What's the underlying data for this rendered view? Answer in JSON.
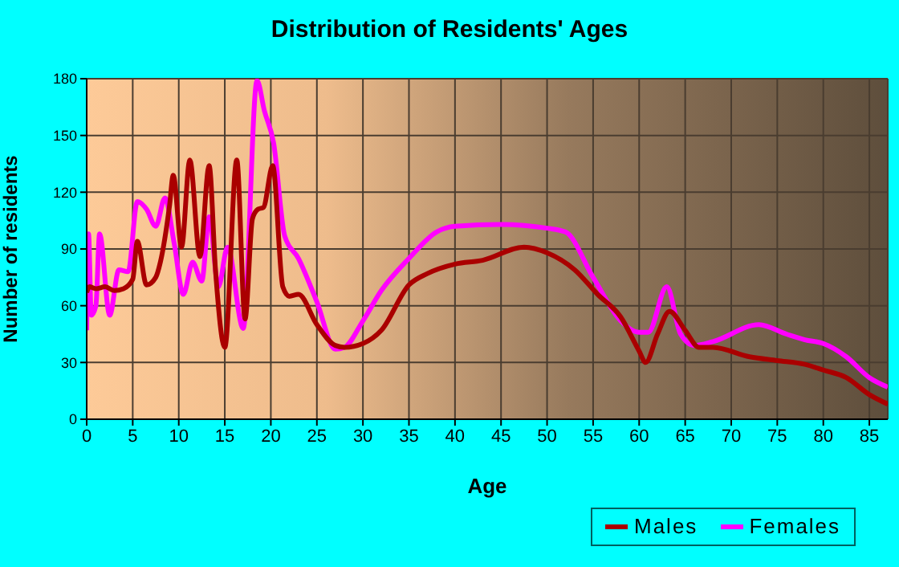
{
  "chart_data": {
    "type": "line",
    "title": "Distribution of Residents' Ages",
    "xlabel": "Age",
    "ylabel": "Number of residents",
    "xlim": [
      0,
      87
    ],
    "xticks": [
      0,
      5,
      10,
      15,
      20,
      25,
      30,
      35,
      40,
      45,
      50,
      55,
      60,
      65,
      70,
      75,
      80,
      85
    ],
    "ylim": [
      0,
      180
    ],
    "yticks": [
      0,
      30,
      60,
      90,
      120,
      150,
      180
    ],
    "grid": true,
    "legend": "bottom right",
    "marker": "none",
    "line_style": "solid",
    "series": [
      {
        "name": "Males",
        "color": "#aa0000",
        "x": [
          0,
          0.3,
          1,
          2,
          3,
          4,
          5,
          5.5,
          6.5,
          7.5,
          8,
          9,
          9.4,
          10.3,
          11.2,
          12.3,
          13.3,
          14,
          15,
          16.3,
          17.2,
          18,
          18.6,
          19.2,
          20.2,
          21.3,
          22,
          23,
          25,
          27,
          28,
          30,
          32,
          35,
          37,
          40,
          43,
          47.5,
          50,
          53,
          55.5,
          58,
          60,
          60.7,
          62,
          63.3,
          65,
          66.5,
          68,
          72,
          75,
          78,
          80,
          82.5,
          85,
          87
        ],
        "values": [
          67,
          70,
          69,
          70,
          68,
          69,
          74,
          94,
          71,
          75,
          83,
          113,
          129,
          91,
          137,
          86,
          134,
          78,
          38,
          137,
          53,
          106,
          111,
          112,
          134,
          70,
          65,
          66,
          50,
          39,
          38,
          40,
          47,
          71,
          77,
          82,
          84,
          91,
          88,
          79,
          66,
          54,
          36,
          30,
          45,
          57,
          47,
          38,
          38,
          33,
          31,
          29,
          26,
          22,
          13,
          8
        ]
      },
      {
        "name": "Females",
        "color": "#ff00ff",
        "x": [
          0,
          0.2,
          0.5,
          1,
          1.4,
          2.5,
          3.5,
          4.5,
          5.5,
          6.5,
          7.5,
          8.5,
          9.5,
          10.5,
          11.5,
          12.5,
          13.3,
          14.3,
          15.3,
          17,
          18.5,
          19.3,
          20.3,
          21.5,
          23,
          25,
          27,
          28,
          30,
          32,
          35,
          38,
          40,
          45,
          50,
          52,
          55,
          58,
          60,
          61,
          63,
          64.5,
          66,
          68,
          73,
          76,
          78,
          80,
          82.5,
          85,
          87
        ],
        "values": [
          47,
          98,
          55,
          60,
          98,
          55,
          79,
          78,
          115,
          111,
          102,
          117,
          93,
          66,
          83,
          73,
          107,
          70,
          91,
          48,
          179,
          163,
          146,
          97,
          85,
          62,
          37,
          38,
          52,
          68,
          85,
          99,
          102,
          103,
          101,
          99,
          75,
          52,
          46,
          46,
          70,
          45,
          39,
          41,
          50,
          45,
          42,
          40,
          33,
          22,
          17
        ]
      }
    ]
  }
}
